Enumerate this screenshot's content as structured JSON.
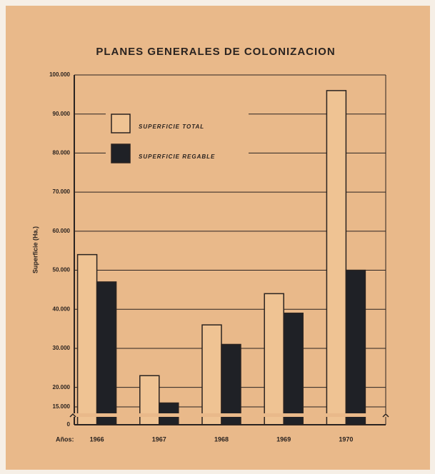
{
  "chart_data": {
    "type": "bar",
    "title": "PLANES GENERALES DE COLONIZACION",
    "y_label": "Superficie (Ha.)",
    "x_prefix": "Años:",
    "categories": [
      "1966",
      "1967",
      "1968",
      "1969",
      "1970"
    ],
    "series": [
      {
        "name": "SUPERFICIE TOTAL",
        "color": "#efc393",
        "values": [
          54000,
          23000,
          36000,
          44000,
          96000
        ]
      },
      {
        "name": "SUPERFICIE REGABLE",
        "color": "#1f2126",
        "values": [
          47000,
          16000,
          31000,
          39000,
          50000
        ]
      }
    ],
    "ylim": [
      0,
      100000
    ],
    "yticks": [
      0,
      {
        "value": 15000,
        "label": "15.000"
      },
      {
        "value": 20000,
        "label": "20.000"
      },
      {
        "value": 30000,
        "label": "30.000"
      },
      {
        "value": 40000,
        "label": "40.000"
      },
      {
        "value": 50000,
        "label": "50.000"
      },
      {
        "value": 60000,
        "label": "60.000"
      },
      {
        "value": 70000,
        "label": "70.000"
      },
      {
        "value": 80000,
        "label": "80.000"
      },
      {
        "value": 90000,
        "label": "90.000"
      },
      {
        "value": 100000,
        "label": "100.000"
      }
    ],
    "axis_break": true,
    "grid": true,
    "legend": "top-left"
  }
}
